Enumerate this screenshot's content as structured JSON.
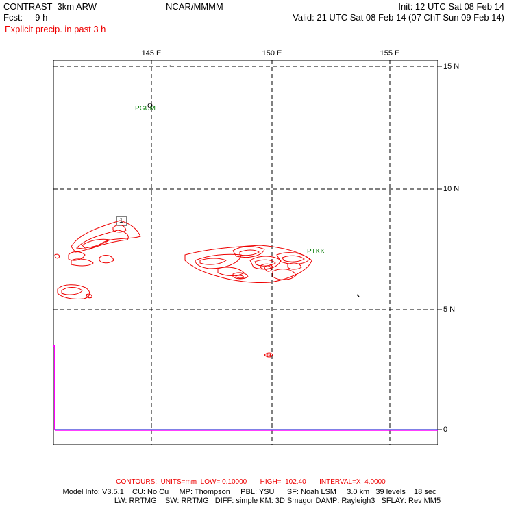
{
  "header": {
    "model": "CONTRAST  3km ARW",
    "org": "NCAR/MMMM",
    "init": "Init: 12 UTC Sat 08 Feb 14",
    "fcst": "Fcst:     9 h",
    "valid": "Valid: 21 UTC Sat 08 Feb 14 (07 ChT Sun 09 Feb 14)",
    "field": "Explicit precip. in past 3 h"
  },
  "map": {
    "lon_labels": [
      "145 E",
      "150 E",
      "155 E"
    ],
    "lat_labels": [
      "15 N",
      "10 N",
      "5 N"
    ],
    "zero_label": "0",
    "stations": [
      "PGUM",
      "PTKK"
    ],
    "inset_label": "1"
  },
  "colors": {
    "contour": "#ee0000",
    "station": "#007a00",
    "trace": "#ff00ff",
    "baseline": "#0000cc"
  },
  "footer": {
    "contours": "CONTOURS:  UNITS=mm  LOW= 0.10000       HIGH=  102.40       INTERVAL=X  4.0000",
    "model_info_1": "Model Info: V3.5.1    CU: No Cu     MP: Thompson     PBL: YSU      SF: Noah LSM     3.0 km   39 levels    18 sec",
    "model_info_2": "LW: RRTMG    SW: RRTMG   DIFF: simple KM: 3D Smagor DAMP: Rayleigh3   SFLAY: Rev MM5"
  }
}
